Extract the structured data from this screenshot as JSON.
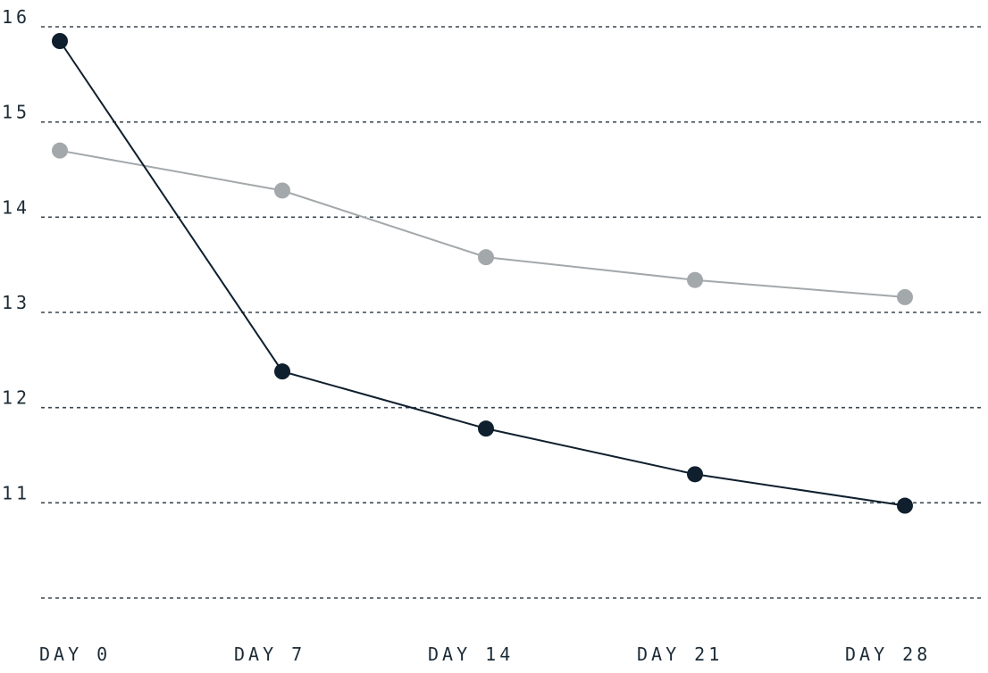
{
  "chart_data": {
    "type": "line",
    "title": "",
    "xlabel": "",
    "ylabel": "",
    "x": [
      "DAY 0",
      "DAY 7",
      "DAY 14",
      "DAY 21",
      "DAY 28"
    ],
    "series": [
      {
        "color": "#0f1f2d",
        "values": [
          15.85,
          12.38,
          11.78,
          11.3,
          10.97
        ]
      },
      {
        "color": "#a3a8ab",
        "values": [
          14.7,
          14.28,
          13.58,
          13.34,
          13.16
        ]
      }
    ],
    "yticks": [
      11,
      12,
      13,
      14,
      15,
      16
    ],
    "ylim": [
      10,
      16
    ],
    "grid": "horizontal dashed",
    "legend": "none"
  }
}
